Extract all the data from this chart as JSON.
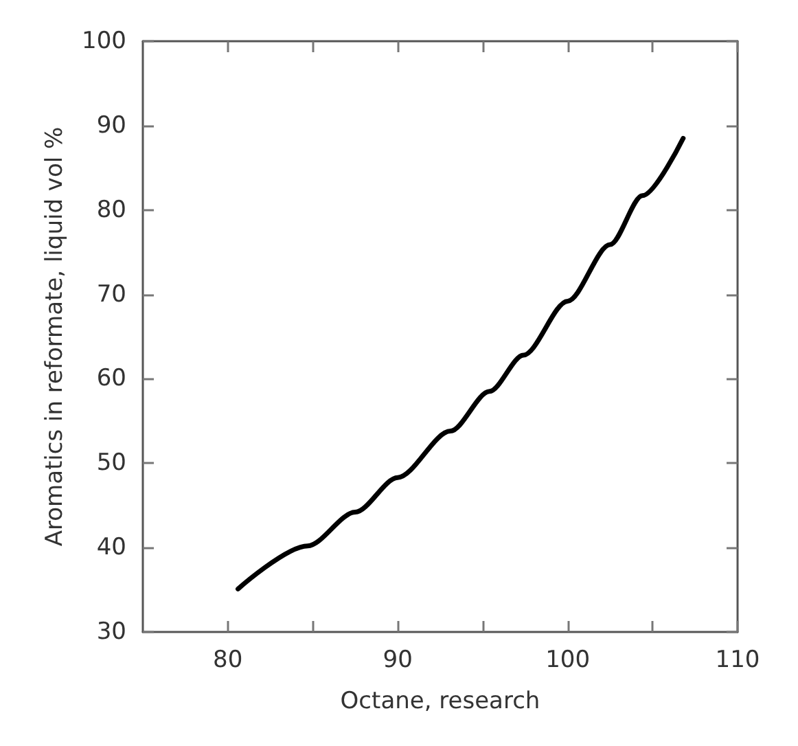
{
  "chart_data": {
    "type": "line",
    "xlabel": "Octane, research",
    "ylabel": "Aromatics in reformate, liquid vol %",
    "x": [
      80.6,
      84.7,
      87.5,
      90,
      93.1,
      95.4,
      97.4,
      100,
      102.5,
      104.4,
      106.8
    ],
    "series": [
      {
        "color": "#000000",
        "values": [
          35.1,
          40.2,
          44.2,
          48.3,
          53.8,
          58.5,
          62.8,
          69.2,
          75.9,
          81.7,
          88.5
        ]
      }
    ],
    "xlim": [
      75,
      110
    ],
    "xticks": [
      80,
      {
        "value": 85,
        "label": null
      },
      90,
      {
        "value": 95,
        "label": null
      },
      100,
      {
        "value": 105,
        "label": null
      },
      110
    ],
    "ylim": [
      30,
      100
    ],
    "yticks": [
      30,
      40,
      50,
      60,
      70,
      80,
      90,
      100
    ],
    "grid": false,
    "marker": "none",
    "line_style": "solid"
  }
}
